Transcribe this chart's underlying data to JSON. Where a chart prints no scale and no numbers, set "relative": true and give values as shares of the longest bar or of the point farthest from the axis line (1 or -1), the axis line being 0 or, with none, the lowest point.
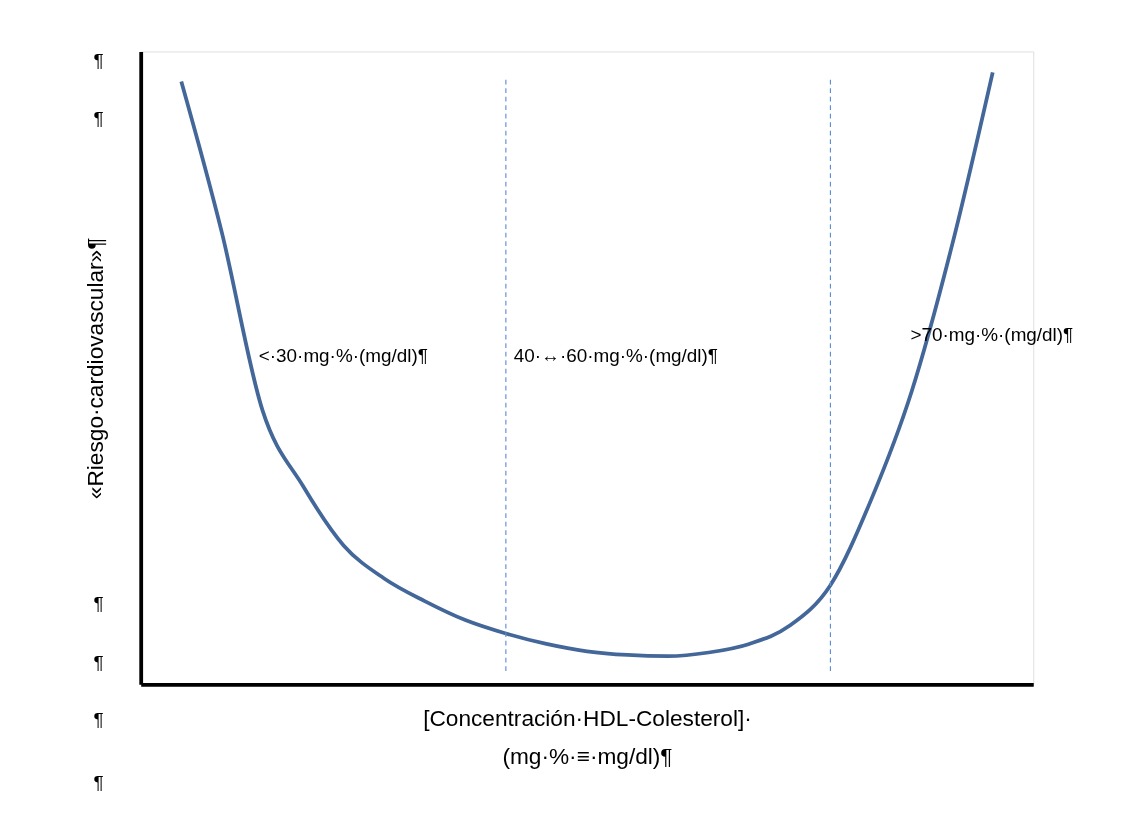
{
  "chart_data": {
    "type": "line",
    "relative": true,
    "xlabel": "[Concentración·HDL-Colesterol]·\n(mg·%·≡·mg/dl)¶",
    "ylabel": "«Riesgo·cardiovascular»¶",
    "categories": [
      null,
      null,
      null,
      null,
      null,
      null,
      null,
      null,
      null,
      null,
      null,
      null,
      null,
      null,
      null,
      null,
      null,
      null,
      null,
      null,
      null
    ],
    "series": [
      {
        "color": "#44679a",
        "values": [
          0.985,
          0.738,
          0.448,
          0.324,
          0.227,
          0.173,
          0.136,
          0.105,
          0.083,
          0.066,
          0.054,
          0.048,
          0.046,
          0.052,
          0.066,
          0.096,
          0.162,
          0.301,
          0.478,
          0.718,
          1.0
        ]
      }
    ],
    "annotations": [
      "<·30·mg·%·(mg/dl)¶",
      "40·↔·60·mg·%·(mg/dl)¶",
      ">70·mg·%·(mg/dl)¶",
      "¶",
      "¶",
      "¶",
      "¶",
      "¶",
      "¶"
    ],
    "marker": "none",
    "line_style": "solid"
  }
}
